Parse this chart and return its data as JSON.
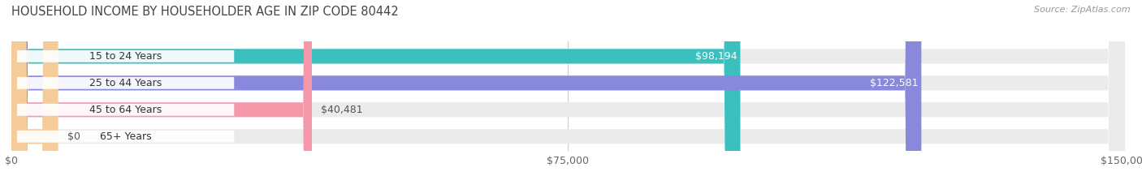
{
  "title": "HOUSEHOLD INCOME BY HOUSEHOLDER AGE IN ZIP CODE 80442",
  "source": "Source: ZipAtlas.com",
  "categories": [
    "15 to 24 Years",
    "25 to 44 Years",
    "45 to 64 Years",
    "65+ Years"
  ],
  "values": [
    98194,
    122581,
    40481,
    0
  ],
  "bar_colors": [
    "#3bbfbf",
    "#8888dd",
    "#f599aa",
    "#f5cc99"
  ],
  "bar_bg_color": "#ebebeb",
  "value_labels": [
    "$98,194",
    "$122,581",
    "$40,481",
    "$0"
  ],
  "xlim": [
    0,
    150000
  ],
  "xtick_values": [
    0,
    75000,
    150000
  ],
  "xtick_labels": [
    "$0",
    "$75,000",
    "$150,000"
  ],
  "title_fontsize": 10.5,
  "label_fontsize": 9,
  "tick_fontsize": 9,
  "source_fontsize": 8,
  "background_color": "#ffffff",
  "bar_height": 0.55,
  "label_bg_color": "#ffffff"
}
